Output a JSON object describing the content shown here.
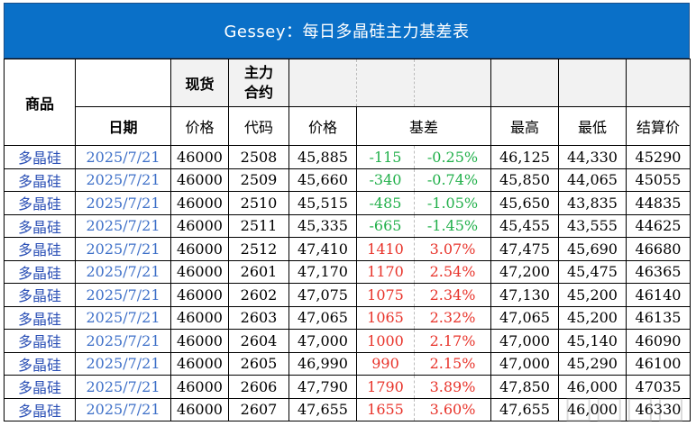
{
  "title": "Gessey：每日多晶硅主力基差表",
  "headers": {
    "product": "商品",
    "date": "日期",
    "spot": "现货",
    "spot_price": "价格",
    "main_contract": "主力\n合约",
    "contract_code": "代码",
    "price": "价格",
    "basis": "基差",
    "high": "最高",
    "low": "最低",
    "settle": "结算价"
  },
  "colors": {
    "title_bg": "#0a70c8",
    "positive": "#e8332a",
    "negative": "#22b04b",
    "link": "#2a4fb5"
  },
  "rows": [
    {
      "product": "多晶硅",
      "date": "2025/7/21",
      "spot": "46000",
      "code": "2508",
      "price": "45,885",
      "basis": "-115",
      "basis_pct": "-0.25%",
      "high": "46,125",
      "low": "44,330",
      "settle": "45290",
      "sign": "neg"
    },
    {
      "product": "多晶硅",
      "date": "2025/7/21",
      "spot": "46000",
      "code": "2509",
      "price": "45,660",
      "basis": "-340",
      "basis_pct": "-0.74%",
      "high": "45,850",
      "low": "44,065",
      "settle": "45055",
      "sign": "neg"
    },
    {
      "product": "多晶硅",
      "date": "2025/7/21",
      "spot": "46000",
      "code": "2510",
      "price": "45,515",
      "basis": "-485",
      "basis_pct": "-1.05%",
      "high": "45,650",
      "low": "43,835",
      "settle": "44835",
      "sign": "neg"
    },
    {
      "product": "多晶硅",
      "date": "2025/7/21",
      "spot": "46000",
      "code": "2511",
      "price": "45,335",
      "basis": "-665",
      "basis_pct": "-1.45%",
      "high": "45,455",
      "low": "43,555",
      "settle": "44625",
      "sign": "neg"
    },
    {
      "product": "多晶硅",
      "date": "2025/7/21",
      "spot": "46000",
      "code": "2512",
      "price": "47,410",
      "basis": "1410",
      "basis_pct": "3.07%",
      "high": "47,475",
      "low": "45,690",
      "settle": "46680",
      "sign": "pos"
    },
    {
      "product": "多晶硅",
      "date": "2025/7/21",
      "spot": "46000",
      "code": "2601",
      "price": "47,170",
      "basis": "1170",
      "basis_pct": "2.54%",
      "high": "47,200",
      "low": "45,475",
      "settle": "46365",
      "sign": "pos"
    },
    {
      "product": "多晶硅",
      "date": "2025/7/21",
      "spot": "46000",
      "code": "2602",
      "price": "47,075",
      "basis": "1075",
      "basis_pct": "2.34%",
      "high": "47,130",
      "low": "45,200",
      "settle": "46140",
      "sign": "pos"
    },
    {
      "product": "多晶硅",
      "date": "2025/7/21",
      "spot": "46000",
      "code": "2603",
      "price": "47,065",
      "basis": "1065",
      "basis_pct": "2.32%",
      "high": "47,065",
      "low": "45,200",
      "settle": "46135",
      "sign": "pos"
    },
    {
      "product": "多晶硅",
      "date": "2025/7/21",
      "spot": "46000",
      "code": "2604",
      "price": "47,000",
      "basis": "1000",
      "basis_pct": "2.17%",
      "high": "47,000",
      "low": "45,140",
      "settle": "46090",
      "sign": "pos"
    },
    {
      "product": "多晶硅",
      "date": "2025/7/21",
      "spot": "46000",
      "code": "2605",
      "price": "46,990",
      "basis": "990",
      "basis_pct": "2.15%",
      "high": "47,000",
      "low": "45,290",
      "settle": "46100",
      "sign": "pos"
    },
    {
      "product": "多晶硅",
      "date": "2025/7/21",
      "spot": "46000",
      "code": "2606",
      "price": "47,790",
      "basis": "1790",
      "basis_pct": "3.89%",
      "high": "47,850",
      "low": "46,000",
      "settle": "47035",
      "sign": "pos"
    },
    {
      "product": "多晶硅",
      "date": "2025/7/21",
      "spot": "46000",
      "code": "2607",
      "price": "47,655",
      "basis": "1655",
      "basis_pct": "3.60%",
      "high": "47,655",
      "low": "46,000",
      "settle": "46330",
      "sign": "pos"
    }
  ]
}
